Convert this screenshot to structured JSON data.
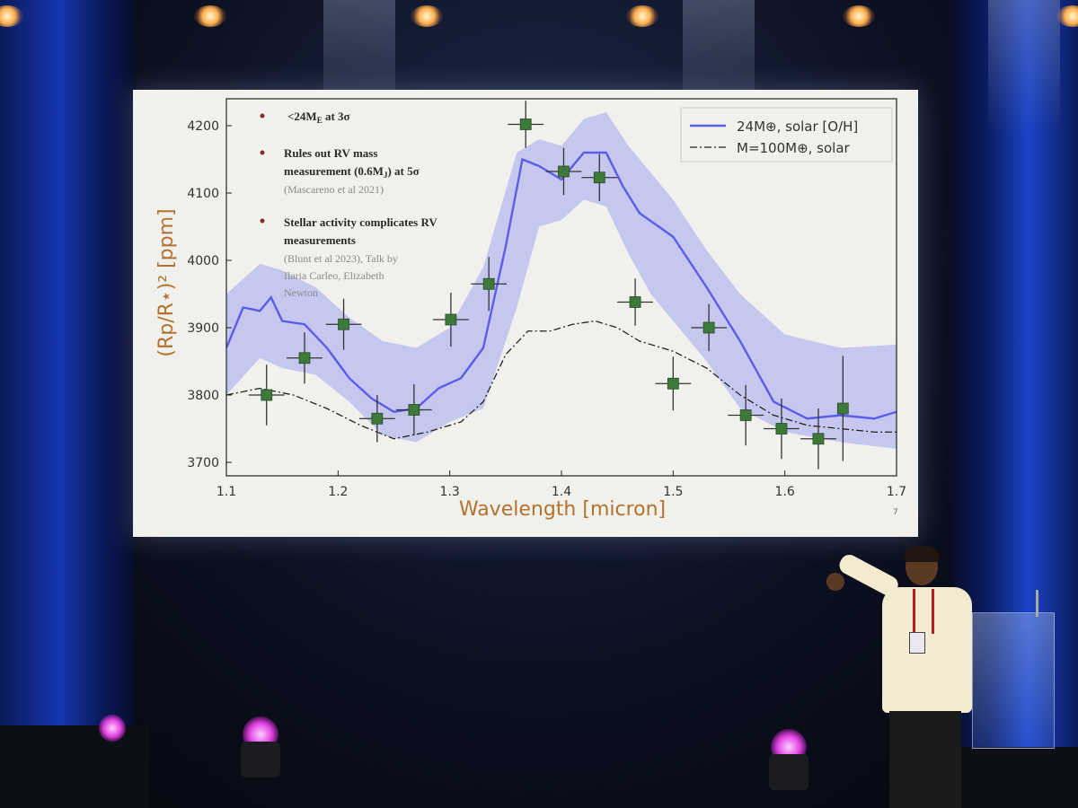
{
  "slide": {
    "bullets": [
      {
        "text": "<24M",
        "sub": "E",
        "rest": " at 3σ"
      },
      {
        "line1": "Rules out RV mass",
        "line2a": "measurement (0.6M",
        "line2sub": "J",
        "line2b": ") at 5σ",
        "ref": "(Mascareno et al 2021)"
      },
      {
        "line1": "Stellar activity complicates RV",
        "line2": "measurements",
        "ref1": "(Blunt et al 2023), Talk by",
        "ref2": "Ilaria Carleo, Elizabeth",
        "ref3": "Newton"
      }
    ],
    "legend": {
      "series1": "24M⊕, solar [O/H]",
      "series2": "M=100M⊕, solar"
    },
    "corner_mark": "7"
  },
  "chart_data": {
    "type": "line",
    "xlabel": "Wavelength [micron]",
    "ylabel": "(Rp/R⋆)² [ppm]",
    "xlim": [
      1.1,
      1.7
    ],
    "ylim": [
      3680,
      4240
    ],
    "xticks": [
      "1.1",
      "1.2",
      "1.3",
      "1.4",
      "1.5",
      "1.6",
      "1.7"
    ],
    "yticks": [
      "3700",
      "3800",
      "3900",
      "4000",
      "4100",
      "4200"
    ],
    "xtick_values": [
      1.1,
      1.2,
      1.3,
      1.4,
      1.5,
      1.6,
      1.7
    ],
    "ytick_values": [
      3700,
      3800,
      3900,
      4000,
      4100,
      4200
    ],
    "series": [
      {
        "name": "24M⊕, solar [O/H]",
        "color": "#5a5ee6",
        "x": [
          1.1,
          1.115,
          1.13,
          1.14,
          1.15,
          1.17,
          1.19,
          1.21,
          1.23,
          1.25,
          1.27,
          1.29,
          1.31,
          1.33,
          1.35,
          1.365,
          1.38,
          1.4,
          1.42,
          1.44,
          1.455,
          1.47,
          1.5,
          1.53,
          1.56,
          1.59,
          1.62,
          1.65,
          1.68,
          1.7
        ],
        "y": [
          3870,
          3930,
          3925,
          3945,
          3910,
          3905,
          3870,
          3825,
          3795,
          3775,
          3780,
          3810,
          3825,
          3870,
          4020,
          4150,
          4140,
          4120,
          4160,
          4160,
          4110,
          4070,
          4035,
          3960,
          3880,
          3790,
          3765,
          3770,
          3765,
          3775
        ]
      },
      {
        "name": "M=100M⊕, solar",
        "color": "#222222",
        "dash": true,
        "x": [
          1.1,
          1.13,
          1.16,
          1.19,
          1.22,
          1.25,
          1.28,
          1.31,
          1.33,
          1.35,
          1.37,
          1.39,
          1.41,
          1.43,
          1.45,
          1.47,
          1.5,
          1.53,
          1.56,
          1.59,
          1.62,
          1.65,
          1.68,
          1.7
        ],
        "y": [
          3800,
          3810,
          3800,
          3780,
          3755,
          3735,
          3745,
          3760,
          3790,
          3860,
          3895,
          3895,
          3905,
          3910,
          3900,
          3880,
          3865,
          3840,
          3800,
          3770,
          3755,
          3750,
          3745,
          3745
        ]
      }
    ],
    "band": {
      "x": [
        1.1,
        1.13,
        1.15,
        1.18,
        1.21,
        1.24,
        1.27,
        1.3,
        1.33,
        1.36,
        1.38,
        1.4,
        1.42,
        1.44,
        1.46,
        1.48,
        1.5,
        1.53,
        1.56,
        1.6,
        1.65,
        1.7
      ],
      "upper": [
        3950,
        3995,
        3985,
        3960,
        3915,
        3880,
        3870,
        3900,
        3990,
        4160,
        4180,
        4170,
        4210,
        4220,
        4170,
        4130,
        4090,
        4015,
        3950,
        3890,
        3870,
        3875
      ],
      "lower": [
        3800,
        3855,
        3840,
        3830,
        3790,
        3740,
        3730,
        3760,
        3780,
        3930,
        4050,
        4060,
        4090,
        4080,
        4010,
        3950,
        3910,
        3850,
        3780,
        3745,
        3730,
        3720
      ]
    },
    "points": [
      {
        "x": 1.136,
        "y": 3800,
        "xerr": 0.016,
        "yerr": 45
      },
      {
        "x": 1.17,
        "y": 3855,
        "xerr": 0.016,
        "yerr": 38
      },
      {
        "x": 1.205,
        "y": 3905,
        "xerr": 0.016,
        "yerr": 38
      },
      {
        "x": 1.235,
        "y": 3765,
        "xerr": 0.016,
        "yerr": 35
      },
      {
        "x": 1.268,
        "y": 3778,
        "xerr": 0.016,
        "yerr": 38
      },
      {
        "x": 1.301,
        "y": 3912,
        "xerr": 0.016,
        "yerr": 40
      },
      {
        "x": 1.335,
        "y": 3965,
        "xerr": 0.016,
        "yerr": 40
      },
      {
        "x": 1.368,
        "y": 4202,
        "xerr": 0.016,
        "yerr": 35
      },
      {
        "x": 1.402,
        "y": 4132,
        "xerr": 0.016,
        "yerr": 35
      },
      {
        "x": 1.434,
        "y": 4123,
        "xerr": 0.016,
        "yerr": 35
      },
      {
        "x": 1.466,
        "y": 3938,
        "xerr": 0.016,
        "yerr": 35
      },
      {
        "x": 1.5,
        "y": 3817,
        "xerr": 0.016,
        "yerr": 40
      },
      {
        "x": 1.532,
        "y": 3900,
        "xerr": 0.016,
        "yerr": 35
      },
      {
        "x": 1.565,
        "y": 3770,
        "xerr": 0.016,
        "yerr": 45
      },
      {
        "x": 1.597,
        "y": 3750,
        "xerr": 0.016,
        "yerr": 45
      },
      {
        "x": 1.63,
        "y": 3735,
        "xerr": 0.016,
        "yerr": 45
      },
      {
        "x": 1.652,
        "y": 3780,
        "xerr": 0.0,
        "yerr": 78
      }
    ],
    "point_color": "#3d7a3a",
    "legend_position": "top-right",
    "grid": false
  }
}
